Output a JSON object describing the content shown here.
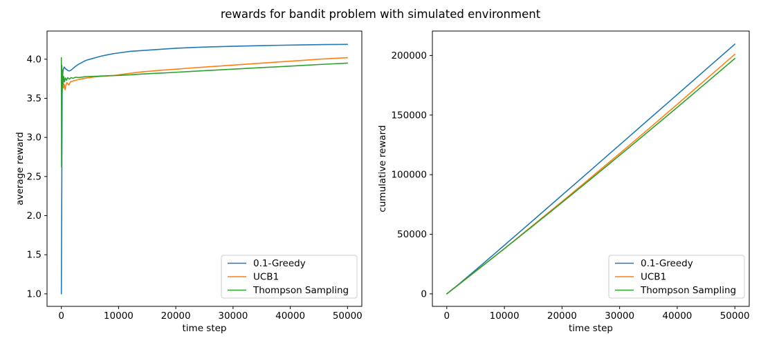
{
  "figure": {
    "title": "rewards for bandit problem with simulated environment",
    "background": "#ffffff",
    "text_color": "#000000",
    "spine_color": "#000000",
    "legend_border_color": "#cccccc",
    "legend_face_color": "#ffffff"
  },
  "chart_data": [
    {
      "type": "line",
      "name": "average-reward-plot",
      "xlabel": "time step",
      "ylabel": "average reward",
      "xlim": [
        -2500,
        52500
      ],
      "ylim": [
        0.84,
        4.36
      ],
      "xticks": [
        0,
        10000,
        20000,
        30000,
        40000,
        50000
      ],
      "xtick_labels": [
        "0",
        "10000",
        "20000",
        "30000",
        "40000",
        "50000"
      ],
      "yticks": [
        1.0,
        1.5,
        2.0,
        2.5,
        3.0,
        3.5,
        4.0
      ],
      "ytick_labels": [
        "1.0",
        "1.5",
        "2.0",
        "2.5",
        "3.0",
        "3.5",
        "4.0"
      ],
      "grid": false,
      "legend": {
        "position": "lower right",
        "entries": [
          "0.1-Greedy",
          "UCB1",
          "Thompson Sampling"
        ]
      },
      "series": [
        {
          "name": "0.1-Greedy",
          "color": "#1f77b4",
          "x": [
            0,
            150,
            300,
            500,
            700,
            900,
            1100,
            1400,
            1700,
            2000,
            2500,
            3000,
            3500,
            4000,
            4500,
            5000,
            6000,
            7000,
            8000,
            9000,
            10000,
            12000,
            14000,
            16000,
            18000,
            20000,
            23000,
            26000,
            30000,
            34000,
            38000,
            42000,
            46000,
            50000
          ],
          "y": [
            1.0,
            3.72,
            3.86,
            3.9,
            3.88,
            3.87,
            3.855,
            3.85,
            3.86,
            3.88,
            3.91,
            3.935,
            3.955,
            3.975,
            3.99,
            4.0,
            4.02,
            4.04,
            4.055,
            4.07,
            4.08,
            4.1,
            4.11,
            4.12,
            4.13,
            4.14,
            4.15,
            4.158,
            4.165,
            4.172,
            4.178,
            4.183,
            4.187,
            4.19
          ]
        },
        {
          "name": "UCB1",
          "color": "#ff7f0e",
          "x": [
            0,
            100,
            200,
            350,
            500,
            650,
            800,
            1000,
            1300,
            1600,
            2000,
            2500,
            3000,
            4000,
            5000,
            6000,
            7000,
            8000,
            9000,
            10000,
            12000,
            14000,
            16000,
            18000,
            20000,
            22500,
            25000,
            27500,
            30000,
            32500,
            35000,
            37500,
            40000,
            42500,
            45000,
            47500,
            50000
          ],
          "y": [
            3.9,
            3.65,
            3.75,
            3.63,
            3.68,
            3.61,
            3.67,
            3.7,
            3.67,
            3.71,
            3.72,
            3.73,
            3.74,
            3.755,
            3.765,
            3.775,
            3.78,
            3.785,
            3.79,
            3.8,
            3.82,
            3.838,
            3.85,
            3.862,
            3.872,
            3.887,
            3.9,
            3.912,
            3.925,
            3.937,
            3.95,
            3.962,
            3.975,
            3.987,
            4.0,
            4.01,
            4.02
          ]
        },
        {
          "name": "Thompson Sampling",
          "color": "#2ca02c",
          "x": [
            0,
            40,
            90,
            150,
            220,
            300,
            400,
            550,
            700,
            900,
            1100,
            1400,
            1700,
            2000,
            2500,
            3000,
            4000,
            5000,
            6000,
            7000,
            8000,
            9000,
            10000,
            12000,
            14000,
            16000,
            18000,
            20000,
            22500,
            25000,
            27500,
            30000,
            32500,
            35000,
            37500,
            40000,
            42500,
            45000,
            47500,
            50000
          ],
          "y": [
            4.02,
            2.62,
            3.92,
            3.58,
            3.85,
            3.68,
            3.78,
            3.71,
            3.76,
            3.73,
            3.765,
            3.745,
            3.765,
            3.755,
            3.77,
            3.765,
            3.775,
            3.78,
            3.782,
            3.785,
            3.788,
            3.79,
            3.792,
            3.8,
            3.81,
            3.818,
            3.825,
            3.833,
            3.843,
            3.853,
            3.863,
            3.873,
            3.883,
            3.893,
            3.902,
            3.912,
            3.922,
            3.932,
            3.941,
            3.95
          ]
        }
      ]
    },
    {
      "type": "line",
      "name": "cumulative-reward-plot",
      "xlabel": "time step",
      "ylabel": "cumulative reward",
      "xlim": [
        -2500,
        52500
      ],
      "ylim": [
        -10500,
        220500
      ],
      "xticks": [
        0,
        10000,
        20000,
        30000,
        40000,
        50000
      ],
      "xtick_labels": [
        "0",
        "10000",
        "20000",
        "30000",
        "40000",
        "50000"
      ],
      "yticks": [
        0,
        50000,
        100000,
        150000,
        200000
      ],
      "ytick_labels": [
        "0",
        "50000",
        "100000",
        "150000",
        "200000"
      ],
      "grid": false,
      "legend": {
        "position": "lower right",
        "entries": [
          "0.1-Greedy",
          "UCB1",
          "Thompson Sampling"
        ]
      },
      "series": [
        {
          "name": "0.1-Greedy",
          "color": "#1f77b4",
          "x": [
            0,
            2000,
            4000,
            6000,
            8000,
            10000,
            15000,
            20000,
            25000,
            30000,
            35000,
            40000,
            45000,
            50000
          ],
          "y": [
            0,
            7760,
            15900,
            24120,
            32440,
            40800,
            61725,
            82800,
            103800,
            124950,
            146090,
            167200,
            188415,
            209500
          ]
        },
        {
          "name": "UCB1",
          "color": "#ff7f0e",
          "x": [
            0,
            2000,
            4000,
            6000,
            8000,
            10000,
            15000,
            20000,
            25000,
            30000,
            35000,
            40000,
            45000,
            50000
          ],
          "y": [
            0,
            7440,
            15020,
            22650,
            30280,
            38000,
            57675,
            77440,
            97500,
            117750,
            138250,
            159000,
            180000,
            201000
          ]
        },
        {
          "name": "Thompson Sampling",
          "color": "#2ca02c",
          "x": [
            0,
            2000,
            4000,
            6000,
            8000,
            10000,
            15000,
            20000,
            25000,
            30000,
            35000,
            40000,
            45000,
            50000
          ],
          "y": [
            0,
            7510,
            15100,
            22690,
            30300,
            37920,
            57180,
            76660,
            96325,
            116190,
            136255,
            156480,
            176940,
            197500
          ]
        }
      ]
    }
  ]
}
